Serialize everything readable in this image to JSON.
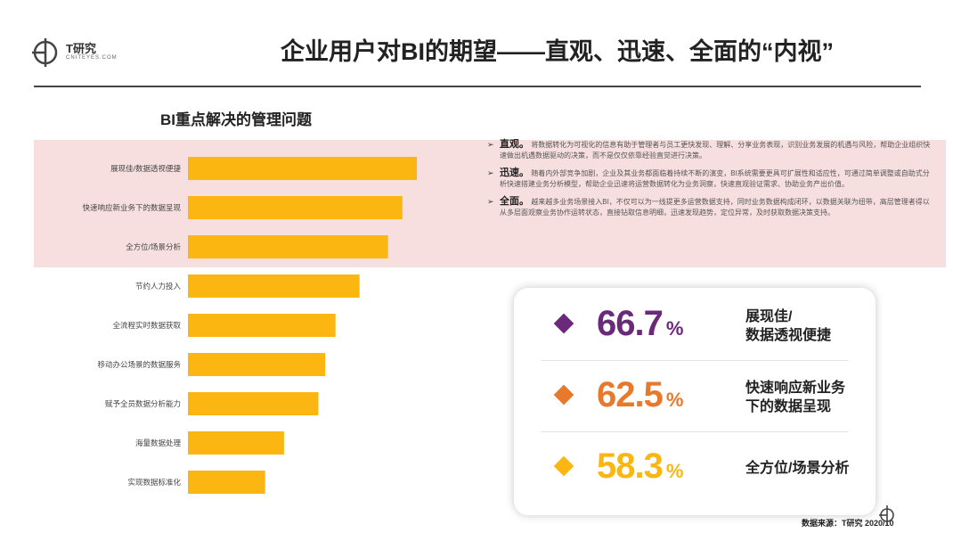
{
  "brand": {
    "name": "T研究",
    "sub": "CNITEYES.COM"
  },
  "page": {
    "title": "企业用户对BI的期望——直观、迅速、全面的“内视”"
  },
  "chart_data": {
    "type": "bar",
    "orientation": "horizontal",
    "title": "BI重点解决的管理问题",
    "categories": [
      "展现佳/数据透视便捷",
      "快速响应新业务下的数据呈现",
      "全方位/场景分析",
      "节约人力投入",
      "全流程实时数据获取",
      "移动办公场景的数据服务",
      "赋予全员数据分析能力",
      "海量数据处理",
      "实现数据标准化"
    ],
    "values": [
      66.7,
      62.5,
      58.3,
      50.0,
      43.0,
      40.0,
      38.0,
      28.0,
      22.5
    ],
    "unit": "%",
    "highlighted_top": 3,
    "color": "#fbb611",
    "highlight_band_color": "#f8dfdf",
    "axes_visible": false,
    "grid": false
  },
  "notes": [
    {
      "head": "直观。",
      "text": "将数据转化为可视化的信息有助于管理者与员工更快发现、理解、分享业务表现，识别业务发展的机遇与风险，帮助企业组织快速做出机遇数据驱动的决策，而不是仅仅依靠经验直觉进行决策。"
    },
    {
      "head": "迅速。",
      "text": "随着内外部竞争加剧，企业及其业务都面临着持续不断的演变，BI系统需要更具可扩展性和适应性，可通过简单调整或自助式分析快速搭建业务分析模型，帮助企业迅速将运营数据转化为业务洞察，快速直观验证需求、协助业务产出价值。"
    },
    {
      "head": "全面。",
      "text": "越来越多业务场景接入BI，不仅可以为一线提更多运营数据支持，同时业务数据构成闭环，以数据关联为纽带，高层管理者得以从多层面观察业务协作运转状态，直接钻取信息明细，迅速发现趋势，定位异常，及时获取数据决策支持。"
    }
  ],
  "stats": [
    {
      "value": "66.7",
      "unit": "%",
      "label_line1": "展现佳/",
      "label_line2": "数据透视便捷",
      "color": "#6b2a79"
    },
    {
      "value": "62.5",
      "unit": "%",
      "label_line1": "快速响应新业务",
      "label_line2": "下的数据呈现",
      "color": "#e8792b"
    },
    {
      "value": "58.3",
      "unit": "%",
      "label_line1": "全方位/场景分析",
      "label_line2": "",
      "color": "#fbb611"
    }
  ],
  "source": "数据来源：T研究 2020/10"
}
